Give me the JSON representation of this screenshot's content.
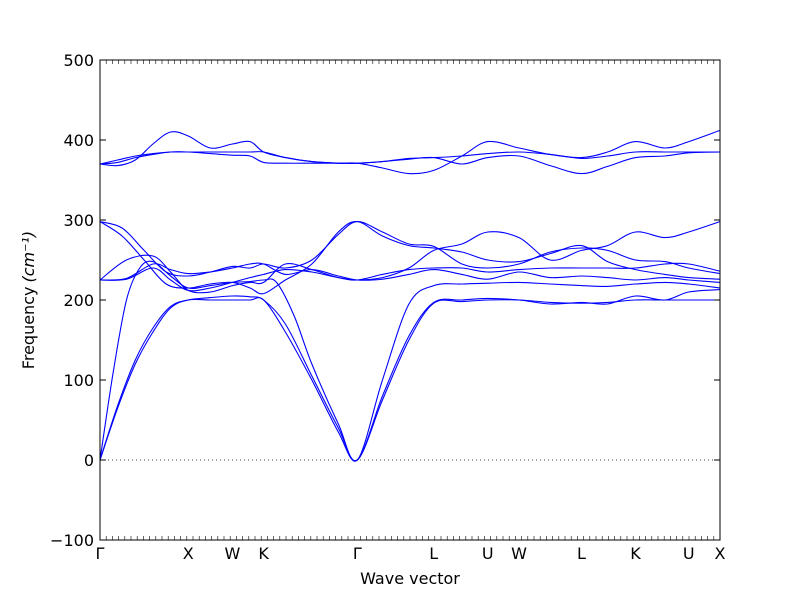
{
  "chart_data": {
    "type": "line",
    "title": "",
    "xlabel": "Wave vector",
    "ylabel_text": "Frequency",
    "ylabel_unit": "(cm⁻¹)",
    "ylim": [
      -100,
      500
    ],
    "y_ticks": [
      -100,
      0,
      100,
      200,
      300,
      400,
      500
    ],
    "y_tick_labels": [
      "−100",
      "0",
      "100",
      "200",
      "300",
      "400",
      "500"
    ],
    "zero_line": true,
    "grid": false,
    "line_color": "#0000ff",
    "kpoints": [
      {
        "label": "Γ",
        "pos": 0.0
      },
      {
        "label": "X",
        "pos": 1.0
      },
      {
        "label": "W",
        "pos": 1.5
      },
      {
        "label": "K",
        "pos": 1.854
      },
      {
        "label": "Γ",
        "pos": 2.915
      },
      {
        "label": "L",
        "pos": 3.781
      },
      {
        "label": "U",
        "pos": 4.393
      },
      {
        "label": "W",
        "pos": 4.747
      },
      {
        "label": "L",
        "pos": 5.454
      },
      {
        "label": "K",
        "pos": 6.067
      },
      {
        "label": "U",
        "pos": 6.67
      },
      {
        "label": "X",
        "pos": 7.024
      }
    ],
    "series": [
      {
        "x": [
          0.0,
          0.2,
          0.4,
          0.6,
          0.8,
          1.0,
          1.25,
          1.5,
          1.7,
          1.854,
          2.1,
          2.4,
          2.7,
          2.915,
          3.2,
          3.5,
          3.781,
          4.1,
          4.393,
          4.747,
          5.1,
          5.454,
          5.75,
          6.067,
          6.4,
          6.67,
          7.024
        ],
        "values": [
          0,
          65,
          120,
          160,
          190,
          200,
          200,
          200,
          200,
          200,
          160,
          100,
          35,
          0,
          75,
          150,
          196,
          198,
          200,
          200,
          197,
          196,
          197,
          200,
          200,
          200,
          200
        ]
      },
      {
        "x": [
          0.0,
          0.2,
          0.4,
          0.6,
          0.8,
          1.0,
          1.25,
          1.5,
          1.7,
          1.854,
          2.1,
          2.4,
          2.7,
          2.915,
          3.2,
          3.5,
          3.781,
          4.1,
          4.393,
          4.747,
          5.1,
          5.454,
          5.75,
          6.067,
          6.4,
          6.67,
          7.024
        ],
        "values": [
          0,
          68,
          125,
          165,
          192,
          200,
          203,
          205,
          204,
          200,
          170,
          105,
          40,
          0,
          80,
          155,
          197,
          200,
          202,
          200,
          195,
          197,
          195,
          205,
          200,
          210,
          213
        ]
      },
      {
        "x": [
          0.0,
          0.15,
          0.3,
          0.45,
          0.6,
          0.8,
          1.0,
          1.25,
          1.5,
          1.7,
          1.854,
          2.0,
          2.2,
          2.4,
          2.7,
          2.915,
          3.2,
          3.5,
          3.781,
          4.1,
          4.393,
          4.747,
          5.1,
          5.454,
          5.75,
          6.067,
          6.4,
          6.67,
          7.024
        ],
        "values": [
          0,
          110,
          200,
          240,
          248,
          230,
          215,
          218,
          222,
          223,
          225,
          222,
          180,
          120,
          45,
          0,
          100,
          195,
          218,
          220,
          221,
          222,
          220,
          218,
          217,
          220,
          222,
          220,
          215
        ]
      },
      {
        "x": [
          0.0,
          0.3,
          0.6,
          0.8,
          1.0,
          1.25,
          1.5,
          1.7,
          1.854,
          2.1,
          2.4,
          2.7,
          2.915,
          3.2,
          3.5,
          3.781,
          4.1,
          4.393,
          4.747,
          5.1,
          5.454,
          5.75,
          6.067,
          6.4,
          6.67,
          7.024
        ],
        "values": [
          225,
          226,
          240,
          225,
          212,
          215,
          222,
          228,
          232,
          238,
          235,
          228,
          225,
          232,
          238,
          240,
          240,
          235,
          238,
          240,
          240,
          240,
          240,
          245,
          245,
          236
        ]
      },
      {
        "x": [
          0.0,
          0.3,
          0.6,
          0.8,
          1.0,
          1.25,
          1.5,
          1.7,
          1.854,
          2.1,
          2.4,
          2.7,
          2.915,
          3.2,
          3.5,
          3.781,
          4.1,
          4.393,
          4.747,
          5.1,
          5.454,
          5.75,
          6.067,
          6.4,
          6.67,
          7.024
        ],
        "values": [
          225,
          227,
          245,
          238,
          233,
          235,
          240,
          245,
          245,
          232,
          238,
          230,
          225,
          226,
          232,
          238,
          232,
          226,
          235,
          228,
          230,
          228,
          225,
          228,
          225,
          222
        ]
      },
      {
        "x": [
          0.0,
          0.25,
          0.5,
          0.75,
          1.0,
          1.25,
          1.5,
          1.7,
          1.854,
          2.1,
          2.4,
          2.7,
          2.915,
          3.2,
          3.5,
          3.781,
          4.1,
          4.393,
          4.747,
          5.1,
          5.454,
          5.75,
          6.067,
          6.4,
          6.67,
          7.024
        ],
        "values": [
          298,
          290,
          262,
          235,
          230,
          235,
          242,
          240,
          245,
          240,
          250,
          282,
          298,
          285,
          270,
          267,
          245,
          240,
          245,
          260,
          265,
          262,
          250,
          248,
          240,
          233
        ]
      },
      {
        "x": [
          0.0,
          0.25,
          0.5,
          0.75,
          1.0,
          1.25,
          1.5,
          1.7,
          1.854,
          2.1,
          2.4,
          2.7,
          2.915,
          3.2,
          3.5,
          3.781,
          4.1,
          4.393,
          4.747,
          5.1,
          5.454,
          5.75,
          6.067,
          6.4,
          6.67,
          7.024
        ],
        "values": [
          298,
          280,
          250,
          220,
          215,
          220,
          222,
          215,
          208,
          225,
          245,
          285,
          298,
          280,
          268,
          265,
          260,
          250,
          248,
          258,
          268,
          248,
          238,
          232,
          228,
          226
        ]
      },
      {
        "x": [
          0.0,
          0.3,
          0.6,
          0.8,
          1.0,
          1.25,
          1.5,
          1.7,
          1.854,
          2.1,
          2.4,
          2.7,
          2.915,
          3.2,
          3.5,
          3.781,
          4.1,
          4.393,
          4.747,
          5.1,
          5.454,
          5.75,
          6.067,
          6.4,
          6.67,
          7.024
        ],
        "values": [
          225,
          250,
          255,
          235,
          212,
          210,
          218,
          222,
          222,
          245,
          238,
          228,
          225,
          228,
          240,
          262,
          270,
          285,
          278,
          250,
          262,
          268,
          285,
          278,
          285,
          298
        ]
      },
      {
        "x": [
          0.0,
          0.2,
          0.4,
          0.6,
          0.8,
          1.0,
          1.25,
          1.5,
          1.7,
          1.854,
          2.1,
          2.4,
          2.7,
          2.915,
          3.2,
          3.5,
          3.781,
          4.1,
          4.393,
          4.747,
          5.1,
          5.454,
          5.75,
          6.067,
          6.4,
          6.67,
          7.024
        ],
        "values": [
          370,
          372,
          378,
          382,
          385,
          385,
          385,
          385,
          385,
          385,
          378,
          373,
          371,
          371,
          373,
          377,
          378,
          380,
          383,
          385,
          382,
          377,
          380,
          385,
          385,
          385,
          385
        ]
      },
      {
        "x": [
          0.0,
          0.2,
          0.4,
          0.6,
          0.8,
          1.0,
          1.25,
          1.5,
          1.7,
          1.854,
          2.1,
          2.4,
          2.7,
          2.915,
          3.2,
          3.5,
          3.781,
          4.1,
          4.393,
          4.747,
          5.1,
          5.454,
          5.75,
          6.067,
          6.4,
          6.67,
          7.024
        ],
        "values": [
          370,
          375,
          380,
          383,
          385,
          385,
          383,
          381,
          380,
          372,
          371,
          371,
          371,
          371,
          373,
          376,
          378,
          370,
          378,
          380,
          368,
          358,
          367,
          378,
          380,
          384,
          385
        ]
      },
      {
        "x": [
          0.0,
          0.2,
          0.4,
          0.6,
          0.8,
          1.0,
          1.25,
          1.5,
          1.7,
          1.854,
          2.1,
          2.4,
          2.7,
          2.915,
          3.2,
          3.5,
          3.781,
          4.1,
          4.393,
          4.747,
          5.1,
          5.454,
          5.75,
          6.067,
          6.4,
          6.67,
          7.024
        ],
        "values": [
          370,
          368,
          375,
          395,
          410,
          405,
          390,
          395,
          398,
          385,
          378,
          373,
          371,
          371,
          365,
          358,
          362,
          380,
          398,
          390,
          382,
          378,
          385,
          398,
          390,
          398,
          412
        ]
      }
    ]
  }
}
